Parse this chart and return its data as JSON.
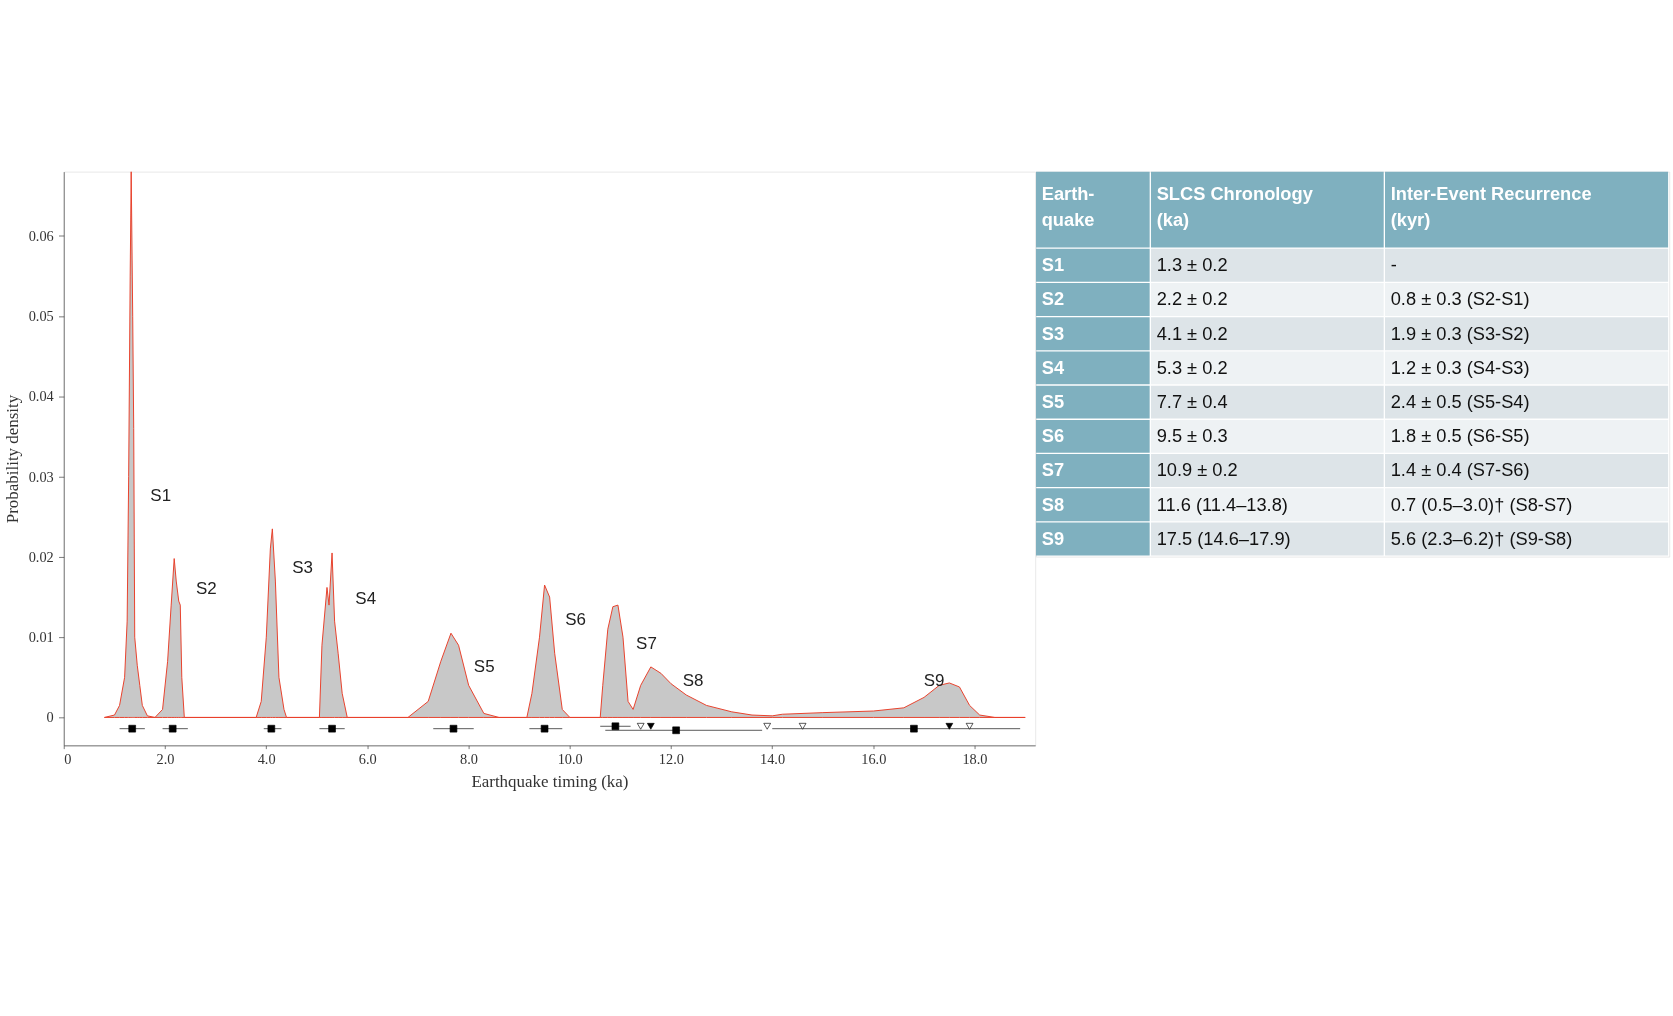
{
  "chart_data": [
    {
      "type": "area",
      "xlabel": "Earthquake timing (ka)",
      "ylabel": "Probability density",
      "xlim": [
        0,
        19.2
      ],
      "ylim": [
        -0.0035,
        0.068
      ],
      "xticks": [
        0,
        {
          "value": 2,
          "label": "2.0"
        },
        {
          "value": 4,
          "label": "4.0"
        },
        {
          "value": 6,
          "label": "6.0"
        },
        {
          "value": 8,
          "label": "8.0"
        },
        {
          "value": 10,
          "label": "10.0"
        },
        {
          "value": 12,
          "label": "12.0"
        },
        {
          "value": 14,
          "label": "14.0"
        },
        {
          "value": 16,
          "label": "16.0"
        },
        {
          "value": 18,
          "label": "18.0"
        }
      ],
      "yticks": [
        0,
        0.01,
        0.02,
        0.03,
        0.04,
        0.05,
        0.06
      ],
      "grid": false,
      "series": [
        {
          "color": "#c8c8c8",
          "x": [
            0.8,
            1.0,
            1.1,
            1.2,
            1.25,
            1.28,
            1.31,
            1.33,
            1.36,
            1.38,
            1.4,
            1.45,
            1.5,
            1.55,
            1.65,
            1.8,
            1.95,
            2.05,
            2.12,
            2.18,
            2.22,
            2.27,
            2.3,
            2.33,
            2.38,
            3.8,
            3.9,
            4.0,
            4.08,
            4.12,
            4.18,
            4.25,
            4.35,
            4.4,
            5.05,
            5.1,
            5.2,
            5.24,
            5.3,
            5.35,
            5.42,
            5.5,
            5.6,
            6.8,
            7.2,
            7.45,
            7.65,
            7.8,
            8.0,
            8.3,
            8.6,
            9.15,
            9.25,
            9.4,
            9.5,
            9.6,
            9.7,
            9.85,
            10.0,
            10.6,
            10.65,
            10.75,
            10.85,
            10.95,
            11.05,
            11.15,
            11.25,
            11.4,
            11.6,
            11.8,
            12.0,
            12.3,
            12.7,
            13.2,
            13.6,
            14.0,
            14.2,
            15.0,
            16.0,
            16.6,
            17.0,
            17.3,
            17.5,
            17.7,
            17.9,
            18.1,
            18.4,
            19.0
          ],
          "values": [
            0,
            0.0003,
            0.0015,
            0.005,
            0.012,
            0.03,
            0.055,
            0.068,
            0.05,
            0.036,
            0.01,
            0.0065,
            0.004,
            0.0015,
            0.0002,
            0,
            0.001,
            0.007,
            0.014,
            0.0198,
            0.017,
            0.0145,
            0.014,
            0.005,
            0,
            0,
            0.002,
            0.01,
            0.021,
            0.0235,
            0.017,
            0.005,
            0.001,
            0,
            0,
            0.009,
            0.0162,
            0.014,
            0.0205,
            0.012,
            0.008,
            0.003,
            0,
            0,
            0.002,
            0.007,
            0.0105,
            0.009,
            0.004,
            0.0005,
            0,
            0,
            0.003,
            0.01,
            0.0165,
            0.015,
            0.008,
            0.001,
            0,
            0,
            0.004,
            0.011,
            0.0138,
            0.014,
            0.01,
            0.002,
            0.001,
            0.004,
            0.0063,
            0.0055,
            0.0042,
            0.0028,
            0.0015,
            0.0007,
            0.0003,
            0.0002,
            0.0004,
            0.0006,
            0.0008,
            0.0012,
            0.0025,
            0.004,
            0.0043,
            0.0038,
            0.0015,
            0.0003,
            0,
            0
          ]
        },
        {
          "type": "scatter",
          "marker": "square",
          "color": "#000000",
          "x": [
            1.35,
            2.15,
            4.1,
            5.3,
            7.7,
            9.5,
            10.9,
            12.1,
            16.8
          ],
          "values": [
            -0.0014,
            -0.0014,
            -0.0014,
            -0.0014,
            -0.0014,
            -0.0014,
            -0.0011,
            -0.0016,
            -0.0014
          ],
          "xerrors": [
            [
              1.1,
              1.6
            ],
            [
              1.95,
              2.45
            ],
            [
              3.95,
              4.3
            ],
            [
              5.05,
              5.55
            ],
            [
              7.3,
              8.1
            ],
            [
              9.2,
              9.85
            ],
            [
              10.6,
              11.2
            ],
            [
              10.7,
              13.8
            ],
            [
              14.0,
              18.9
            ]
          ]
        },
        {
          "type": "scatter",
          "marker": "triangle",
          "color": "#000000",
          "x": [
            11.6,
            17.5
          ],
          "values": [
            -0.0011,
            -0.0011
          ]
        },
        {
          "type": "scatter",
          "marker": "triangle",
          "color": "#ffffff",
          "x": [
            11.4,
            13.9,
            14.6,
            17.9
          ],
          "values": [
            -0.0011,
            -0.0011,
            -0.0011,
            -0.0011
          ]
        }
      ],
      "annotations": [
        "S1",
        "S2",
        "S3",
        "S4",
        "S5",
        "S6",
        "S7",
        "S8",
        "S9"
      ]
    },
    {
      "type": "other",
      "categories": [
        [
          "Earth-",
          "quake"
        ],
        [
          "SLCS Chronology",
          "(ka)"
        ],
        [
          "Inter-Event Recurrence",
          "(kyr)"
        ]
      ],
      "cell_labels": [
        [
          "S1",
          "1.3 ± 0.2",
          "-"
        ],
        [
          "S2",
          "2.2 ± 0.2",
          "0.8 ± 0.3 (S2-S1)"
        ],
        [
          "S3",
          "4.1 ± 0.2",
          "1.9 ± 0.3 (S3-S2)"
        ],
        [
          "S4",
          "5.3 ± 0.2",
          "1.2 ± 0.3 (S4-S3)"
        ],
        [
          "S5",
          "7.7 ± 0.4",
          "2.4 ± 0.5 (S5-S4)"
        ],
        [
          "S6",
          "9.5 ± 0.3",
          "1.8 ± 0.5 (S6-S5)"
        ],
        [
          "S7",
          "10.9 ± 0.2",
          "1.4 ± 0.4 (S7-S6)"
        ],
        [
          "S8",
          "11.6 (11.4–13.8)",
          "0.7 (0.5–3.0)† (S8-S7)"
        ],
        [
          "S9",
          "17.5 (14.6–17.9)",
          "5.6 (2.3–6.2)† (S9-S8)"
        ]
      ]
    }
  ]
}
